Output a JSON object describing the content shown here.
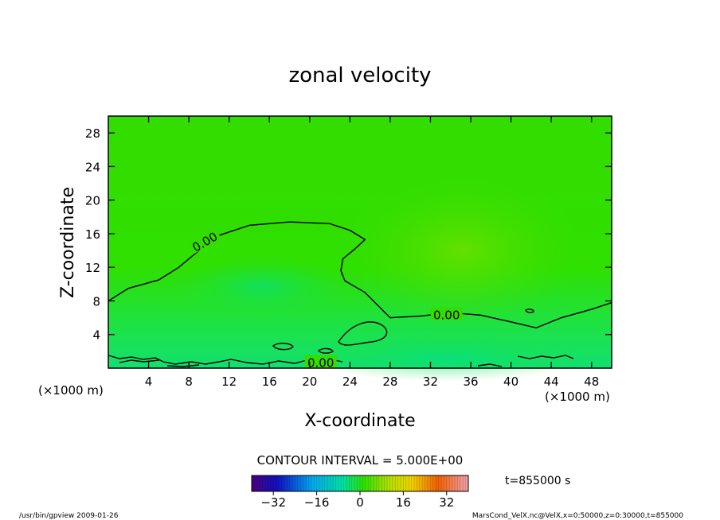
{
  "chart_data": {
    "type": "contour",
    "title": "zonal velocity",
    "xlabel": "X-coordinate",
    "ylabel": "Z-coordinate",
    "x_unit_label": "(×1000 m)",
    "y_unit_label": "(×1000 m)",
    "xlim": [
      0,
      50
    ],
    "ylim": [
      0,
      30
    ],
    "x_ticks": [
      4,
      8,
      12,
      16,
      20,
      24,
      28,
      32,
      36,
      40,
      44,
      48
    ],
    "y_ticks": [
      4,
      8,
      12,
      16,
      20,
      24,
      28
    ],
    "contour_interval_text": "CONTOUR INTERVAL = 5.000E+00",
    "contour_label": "0.00",
    "zero_contour": [
      {
        "x": 0,
        "y": 8.0
      },
      {
        "x": 2,
        "y": 9.5
      },
      {
        "x": 5,
        "y": 10.5
      },
      {
        "x": 7,
        "y": 12.0
      },
      {
        "x": 9,
        "y": 14.0
      },
      {
        "x": 11,
        "y": 15.8
      },
      {
        "x": 14,
        "y": 17.0
      },
      {
        "x": 18,
        "y": 17.4
      },
      {
        "x": 22,
        "y": 17.2
      },
      {
        "x": 24,
        "y": 16.4
      },
      {
        "x": 25.5,
        "y": 15.3
      },
      {
        "x": 24.5,
        "y": 14.2
      },
      {
        "x": 23.3,
        "y": 13.0
      },
      {
        "x": 23.1,
        "y": 11.6
      },
      {
        "x": 23.5,
        "y": 10.4
      },
      {
        "x": 25.5,
        "y": 9.0
      },
      {
        "x": 28,
        "y": 6.0
      },
      {
        "x": 31,
        "y": 6.2
      },
      {
        "x": 34,
        "y": 6.6
      },
      {
        "x": 37,
        "y": 6.3
      },
      {
        "x": 40,
        "y": 5.5
      },
      {
        "x": 42.5,
        "y": 4.8
      },
      {
        "x": 45,
        "y": 6.0
      },
      {
        "x": 48,
        "y": 7.0
      },
      {
        "x": 50,
        "y": 7.8
      }
    ],
    "colorbar": {
      "tick_labels": [
        "−32",
        "−16",
        "0",
        "16",
        "32"
      ],
      "tick_values": [
        -32,
        -16,
        0,
        16,
        32
      ],
      "range": [
        -40,
        40
      ]
    },
    "time_label": "t=855000 s"
  },
  "footer": {
    "left": "/usr/bin/gpview  2009-01-26",
    "right": "MarsCond_VelX.nc@VelX,x=0:50000,z=0:30000,t=855000"
  }
}
